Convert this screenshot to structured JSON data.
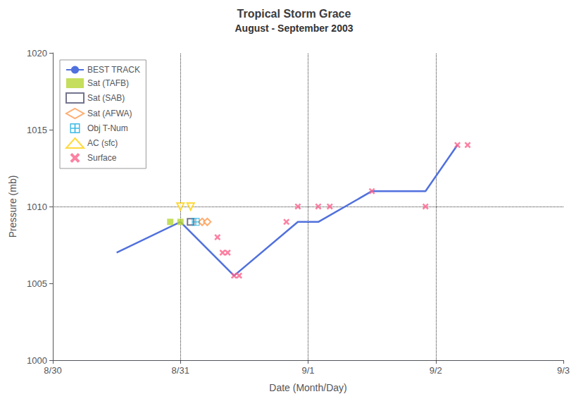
{
  "chart_data": {
    "type": "line",
    "title": "Tropical Storm Grace",
    "subtitle": "August - September 2003",
    "xlabel": "Date (Month/Day)",
    "ylabel": "Pressure (mb)",
    "xlim": [
      0.0,
      4.0
    ],
    "xticks": [
      {
        "value": 0,
        "label": "8/30"
      },
      {
        "value": 1,
        "label": "8/31"
      },
      {
        "value": 2,
        "label": "9/1"
      },
      {
        "value": 3,
        "label": "9/2"
      },
      {
        "value": 4,
        "label": "9/3"
      }
    ],
    "ylim": [
      1000,
      1020
    ],
    "yticks": [
      1000,
      1005,
      1010,
      1015,
      1020
    ],
    "grid": false,
    "legend": "upper left",
    "hlines": [
      1010
    ],
    "vlines": [
      1.0,
      2.0,
      3.0
    ],
    "series": [
      {
        "name": "BEST TRACK",
        "type": "line",
        "line_style": "solid",
        "x": [
          0.5,
          1.0,
          1.0,
          1.42,
          1.92,
          2.08,
          2.5,
          2.92,
          3.17
        ],
        "values": [
          1007,
          1009,
          1009,
          1005.5,
          1009,
          1009,
          1011,
          1011,
          1014
        ]
      },
      {
        "name": "Sat (TAFB)",
        "type": "scatter",
        "marker": "square",
        "x": [
          0.92,
          1.0
        ],
        "values": [
          1009,
          1009
        ]
      },
      {
        "name": "Sat (SAB)",
        "type": "scatter",
        "marker": "open_square",
        "x": [
          1.08
        ],
        "values": [
          1009
        ]
      },
      {
        "name": "Sat (AFWA)",
        "type": "scatter",
        "marker": "open_diamond",
        "x": [
          1.17,
          1.21
        ],
        "values": [
          1009,
          1009
        ]
      },
      {
        "name": "Obj T-Num",
        "type": "scatter",
        "marker": "square_plus",
        "x": [
          1.12
        ],
        "values": [
          1009
        ]
      },
      {
        "name": "AC (sfc)",
        "type": "scatter",
        "marker": "open_triangle_down",
        "x": [
          1.0,
          1.08
        ],
        "values": [
          1010,
          1010
        ]
      },
      {
        "name": "Surface",
        "type": "scatter",
        "marker": "x",
        "x": [
          1.29,
          1.33,
          1.37,
          1.42,
          1.46,
          1.83,
          1.92,
          2.08,
          2.17,
          2.5,
          2.92,
          3.17,
          3.25
        ],
        "values": [
          1008,
          1007,
          1007,
          1005.5,
          1005.5,
          1009,
          1010,
          1010,
          1010,
          1011,
          1010,
          1014,
          1014
        ]
      }
    ]
  }
}
